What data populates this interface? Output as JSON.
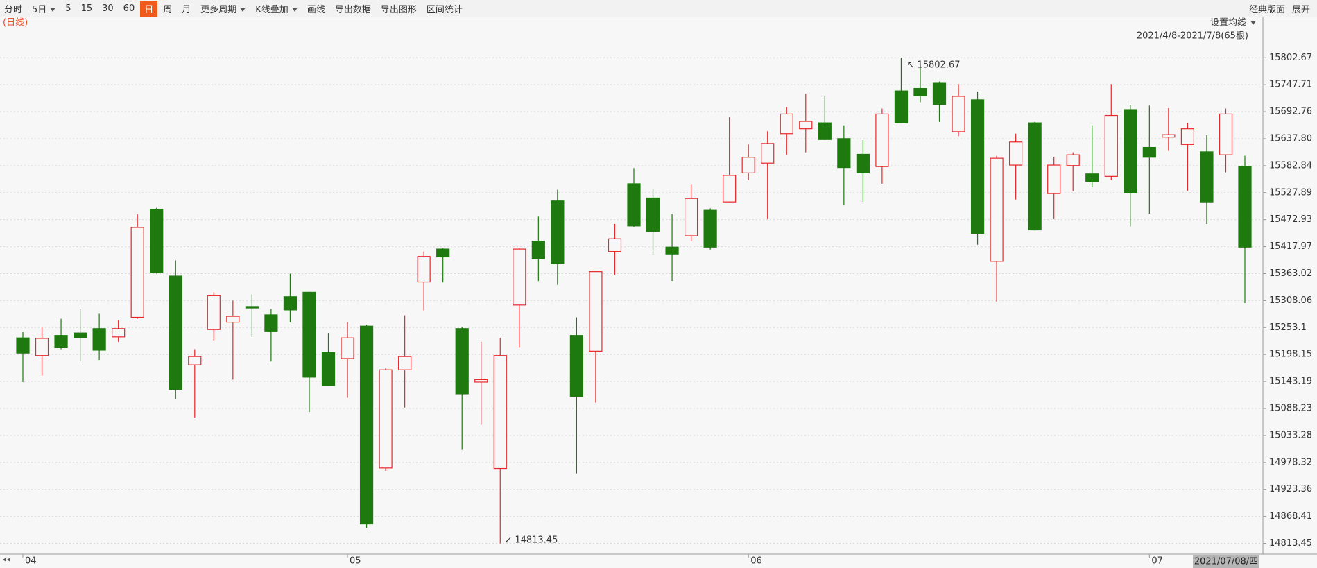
{
  "toolbar": {
    "items": [
      {
        "label": "分时"
      },
      {
        "label": "5日",
        "menu": true
      },
      {
        "label": "5"
      },
      {
        "label": "15"
      },
      {
        "label": "30"
      },
      {
        "label": "60"
      },
      {
        "label": "日",
        "active": true
      },
      {
        "label": "周"
      },
      {
        "label": "月"
      },
      {
        "label": "更多周期",
        "menu": true
      },
      {
        "label": "K线叠加",
        "menu": true
      },
      {
        "label": "画线"
      },
      {
        "label": "导出数据"
      },
      {
        "label": "导出图形"
      },
      {
        "label": "区间统计"
      }
    ],
    "right": [
      "经典版面",
      "展开"
    ]
  },
  "chart_data": {
    "type": "candlestick",
    "period_label": "(日线)",
    "ma_setting": "设置均线",
    "range_label": "2021/4/8-2021/7/8(65根)",
    "cursor_date": "2021/07/08/四",
    "up_color": "#e8262a",
    "down_color": "#1e7a0f",
    "grid": true,
    "ylim": [
      14791.6,
      15822.8
    ],
    "yticks": [
      15802.67,
      15747.71,
      15692.76,
      {
        "value": 15637.8,
        "label": "15637.80"
      },
      15582.84,
      15527.89,
      15472.93,
      15417.97,
      15363.02,
      15308.06,
      15253.1,
      15198.15,
      15143.19,
      15088.23,
      15033.28,
      14978.32,
      14923.36,
      14868.41,
      14813.45
    ],
    "categories": [
      "04",
      null,
      null,
      null,
      null,
      null,
      null,
      null,
      null,
      null,
      null,
      null,
      null,
      null,
      null,
      null,
      null,
      "05",
      null,
      null,
      null,
      null,
      null,
      null,
      null,
      null,
      null,
      null,
      null,
      null,
      null,
      null,
      null,
      null,
      null,
      null,
      null,
      null,
      "06",
      null,
      null,
      null,
      null,
      null,
      null,
      null,
      null,
      null,
      null,
      null,
      null,
      null,
      null,
      null,
      null,
      null,
      null,
      null,
      null,
      "07",
      null,
      null,
      null,
      null,
      null
    ],
    "open": [
      15232,
      15196,
      15237,
      15242,
      15251,
      15234,
      15274,
      15494,
      15358,
      15177,
      15249,
      15264,
      15296,
      15279,
      15316,
      15325,
      15202,
      15190,
      15256,
      14967,
      15167,
      15346,
      15413,
      15251,
      15142,
      14966,
      15299,
      15429,
      15511,
      15237,
      15205,
      15408,
      15546,
      15517,
      15417,
      15440,
      15492,
      15509,
      15568,
      15588,
      15648,
      15658,
      15670,
      15638,
      15606,
      15581,
      15735,
      15740,
      15752,
      15652,
      15717,
      15388,
      15584,
      15670,
      15526,
      15583,
      15566,
      15561,
      15697,
      15620,
      15641,
      15626,
      15611,
      15605,
      15581
    ],
    "high": [
      15244,
      15253,
      15271,
      15291,
      15281,
      15268,
      15484,
      15497,
      15390,
      15209,
      15325,
      15308,
      15321,
      15291,
      15363,
      15326,
      15242,
      15264,
      15259,
      15170,
      15278,
      15408,
      15415,
      15254,
      15224,
      15232,
      15415,
      15479,
      15534,
      15274,
      15368,
      15464,
      15578,
      15536,
      15485,
      15544,
      15496,
      15682,
      15626,
      15653,
      15702,
      15729,
      15724,
      15665,
      15635,
      15699,
      15802.67,
      15789,
      15754,
      15749,
      15734,
      15603,
      15648,
      15672,
      15601,
      15610,
      15665,
      15749,
      15707,
      15705,
      15700,
      15670,
      15645,
      15699,
      15603
    ],
    "low": [
      15142,
      15155,
      15209,
      15184,
      15187,
      15224,
      15271,
      15363,
      15107,
      15070,
      15227,
      15147,
      15234,
      15184,
      15264,
      15081,
      15134,
      15110,
      14845,
      14961,
      15090,
      15288,
      15345,
      15004,
      15055,
      14813.45,
      15212,
      15348,
      15340,
      14956,
      15100,
      15361,
      15457,
      15402,
      15348,
      15429,
      15412,
      15508,
      15553,
      15474,
      15605,
      15610,
      15635,
      15502,
      15509,
      15546,
      15669,
      15712,
      15672,
      15643,
      15422,
      15306,
      15514,
      15451,
      15474,
      15531,
      15539,
      15553,
      15459,
      15485,
      15613,
      15532,
      15464,
      15569,
      15303
    ],
    "close": [
      15201,
      15231,
      15212,
      15232,
      15207,
      15251,
      15457,
      15365,
      15127,
      15194,
      15318,
      15276,
      15293,
      15246,
      15289,
      15152,
      15135,
      15232,
      14853,
      15167,
      15194,
      15398,
      15397,
      15118,
      15147,
      15196,
      15413,
      15393,
      15383,
      15113,
      15367,
      15434,
      15460,
      15449,
      15403,
      15516,
      15417,
      15563,
      15600,
      15628,
      15688,
      15673,
      15636,
      15579,
      15568,
      15688,
      15670,
      15725,
      15707,
      15724,
      15445,
      15598,
      15631,
      15452,
      15584,
      15605,
      15551,
      15685,
      15527,
      15600,
      15646,
      15658,
      15509,
      15688,
      15417
    ]
  }
}
